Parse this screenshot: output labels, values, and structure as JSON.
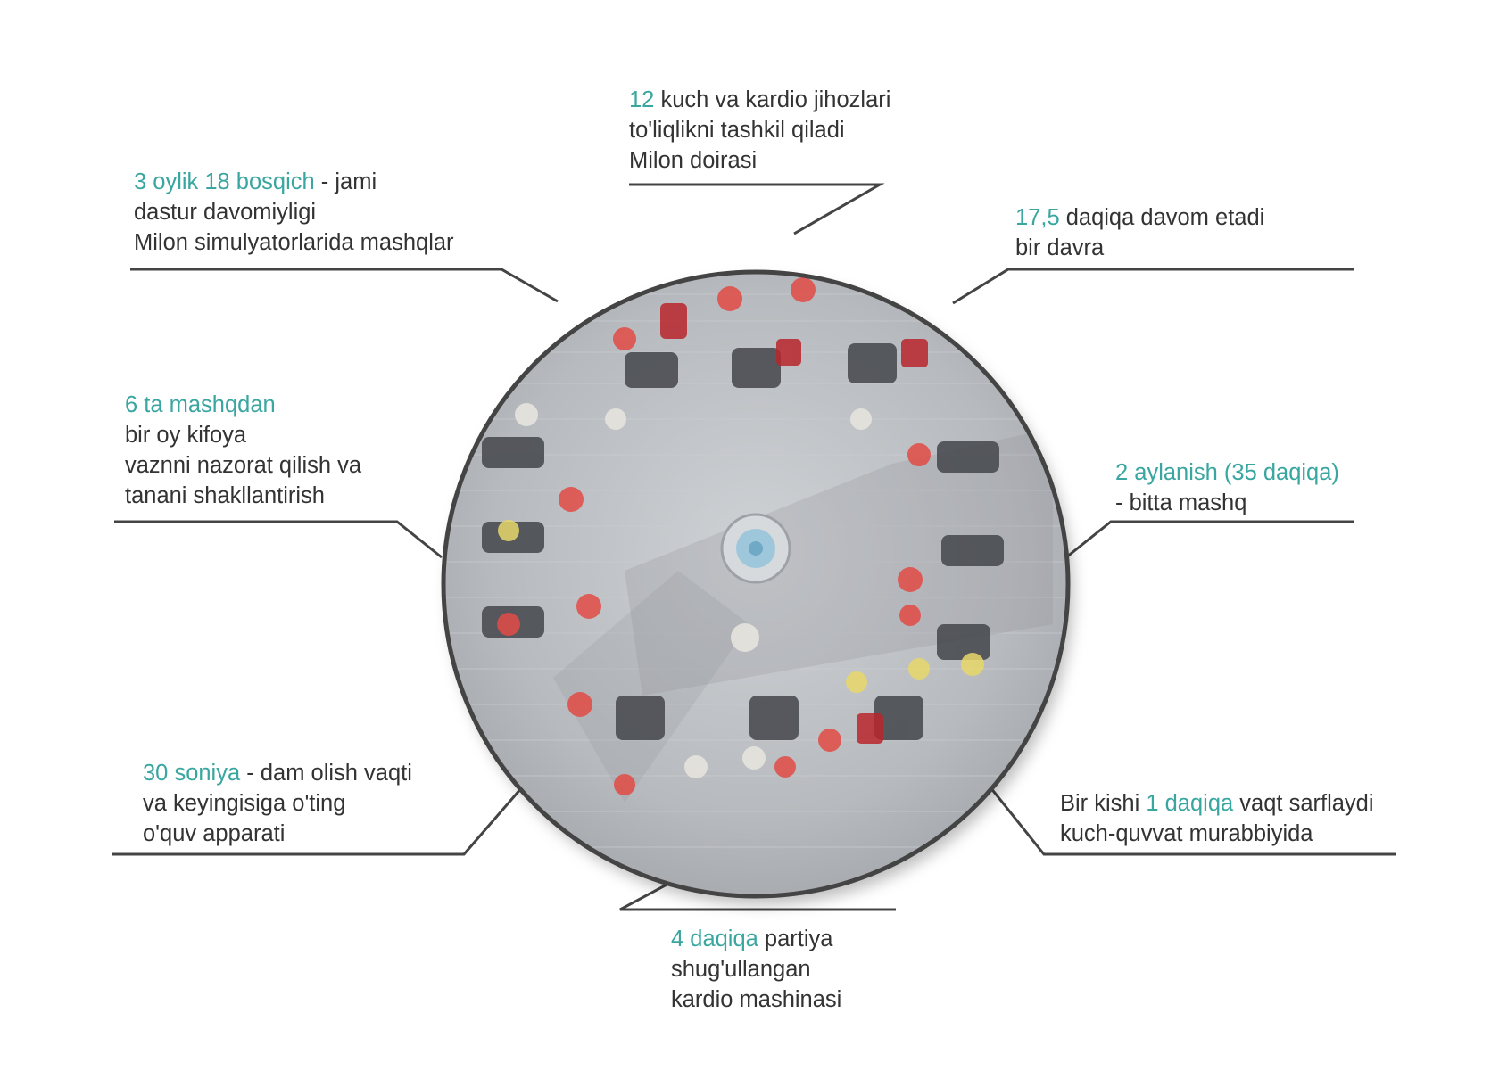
{
  "colors": {
    "accent": "#3aa6a0",
    "text": "#333333",
    "line": "#444444",
    "floor": "#b9bcc0"
  },
  "callouts": {
    "top": {
      "hl": "12",
      "rest": " kuch va kardio jihozlari",
      "line2": "to'liqlikni tashkil qiladi",
      "line3": "Milon doirasi"
    },
    "top_left": {
      "hl": "3 oylik 18 bosqich",
      "rest": " - jami",
      "line2": "dastur davomiyligi",
      "line3": "Milon simulyatorlarida mashqlar"
    },
    "top_right": {
      "hl": "17,5",
      "rest": " daqiqa davom etadi",
      "line2": "bir davra"
    },
    "left": {
      "hl": "6 ta mashqdan",
      "line2": "bir oy kifoya",
      "line3": "vaznni nazorat qilish va",
      "line4": "tanani shakllantirish"
    },
    "right": {
      "hl": "2 aylanish (35 daqiqa)",
      "line2": "- bitta mashq"
    },
    "bottom_left": {
      "hl": "30 soniya",
      "rest": " - dam olish vaqti",
      "line2": "va keyingisiga o'ting",
      "line3": "o'quv apparati"
    },
    "bottom_right": {
      "pre": "Bir kishi ",
      "hl": "1 daqiqa",
      "rest": " vaqt sarflaydi",
      "line2": "kuch-quvvat murabbiyida"
    },
    "bottom": {
      "hl": "4 daqiqa",
      "rest": " partiya",
      "line2": "shug'ullangan",
      "line3": "kardio mashinasi"
    }
  },
  "diagram": {
    "image_description_icon": "gym-circle-photo"
  }
}
